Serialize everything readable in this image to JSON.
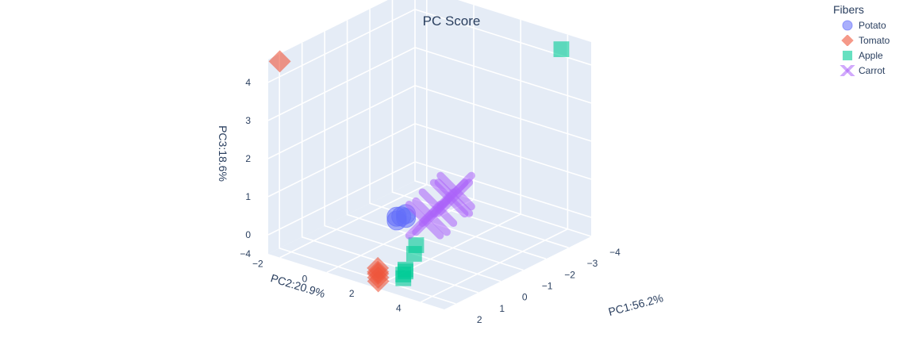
{
  "chart_data": {
    "type": "scatter3d",
    "title": "PC Score",
    "axes": {
      "x": {
        "label": "PC1:56.2%",
        "range": [
          -4,
          2.5
        ],
        "ticks": [
          "−4",
          "−3",
          "−2",
          "−1",
          "0",
          "1",
          "2"
        ]
      },
      "y": {
        "label": "PC2:20.9%",
        "range": [
          -2.5,
          5
        ],
        "ticks": [
          "−2",
          "0",
          "2",
          "4"
        ]
      },
      "z": {
        "label": "PC3:18.6%",
        "range": [
          -0.5,
          4.6
        ],
        "ticks": [
          "−4",
          "0",
          "1",
          "2",
          "3",
          "4"
        ]
      }
    },
    "grid": true,
    "legend": {
      "title": "Fibers",
      "placement": "top-right",
      "entries": [
        "Potato",
        "Tomato",
        "Apple",
        "Carrot"
      ]
    },
    "series": [
      {
        "name": "Potato",
        "symbol": "circle",
        "color": "#636efa",
        "points": [
          [
            -1.0,
            -0.2,
            -0.1
          ],
          [
            -0.9,
            -0.3,
            -0.1
          ],
          [
            -1.1,
            -0.1,
            -0.05
          ],
          [
            -1.0,
            0.0,
            -0.1
          ],
          [
            -0.8,
            -0.2,
            -0.15
          ]
        ]
      },
      {
        "name": "Tomato",
        "symbol": "diamond",
        "color": "#ef553b",
        "points": [
          [
            2.3,
            -2.2,
            4.55
          ],
          [
            1.9,
            1.6,
            -0.4
          ],
          [
            2.0,
            1.7,
            -0.45
          ],
          [
            1.8,
            1.5,
            -0.4
          ],
          [
            2.1,
            1.8,
            -0.5
          ],
          [
            1.7,
            1.4,
            -0.35
          ]
        ]
      },
      {
        "name": "Apple",
        "symbol": "square",
        "color": "#00cc96",
        "points": [
          [
            -3.2,
            4.5,
            4.55
          ],
          [
            1.0,
            1.9,
            -0.5
          ],
          [
            1.2,
            2.0,
            -0.55
          ],
          [
            1.3,
            2.1,
            -0.6
          ],
          [
            1.1,
            2.0,
            -0.5
          ],
          [
            0.2,
            1.5,
            -0.4
          ],
          [
            -0.1,
            1.3,
            -0.3
          ]
        ]
      },
      {
        "name": "Carrot",
        "symbol": "x",
        "color": "#ab63fa",
        "points": [
          [
            -2.9,
            0.3,
            0.1
          ],
          [
            -2.7,
            0.4,
            0.0
          ],
          [
            -2.5,
            0.4,
            0.05
          ],
          [
            -2.0,
            0.4,
            -0.05
          ],
          [
            -1.5,
            0.6,
            -0.1
          ],
          [
            -1.2,
            0.6,
            -0.1
          ]
        ]
      }
    ]
  }
}
